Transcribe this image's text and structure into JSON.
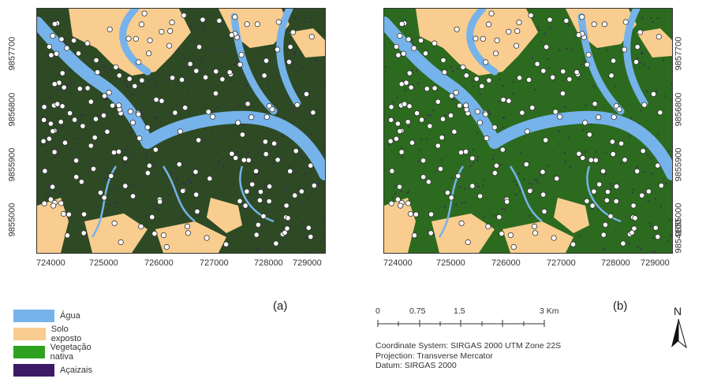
{
  "panels": [
    {
      "id": "a",
      "label": "(a)"
    },
    {
      "id": "b",
      "label": "(b)"
    }
  ],
  "x_ticks": [
    "724000",
    "725000",
    "726000",
    "727000",
    "728000",
    "729000"
  ],
  "y_ticks_left": [
    "9857700",
    "9856800",
    "9855900",
    "9855000"
  ],
  "y_ticks_right": [
    "9857700",
    "9856800",
    "9855900",
    "9855000",
    "9854100"
  ],
  "legend": [
    {
      "label": "Água",
      "color": "#76b3ea"
    },
    {
      "label": "Solo exposto",
      "color": "#f8cd8f"
    },
    {
      "label": "Vegetação nativa",
      "color": "#2ea21f"
    },
    {
      "label": "Açaizais",
      "color": "#3d1a66"
    }
  ],
  "scalebar": {
    "labels": [
      "0",
      "0.75",
      "1.5",
      "3 Km"
    ]
  },
  "metadata": {
    "coordinate_system": "Coordinate System: SIRGAS 2000 UTM Zone 22S",
    "projection": "Projection: Transverse Mercator",
    "datum": "Datum: SIRGAS 2000"
  },
  "north_label": "N",
  "colors": {
    "forest_dark_a": "#2e4a25",
    "forest_dark_b": "#2c6a1f",
    "water": "#76b3ea",
    "soil": "#f8cd8f",
    "point_fill": "#ffffff",
    "point_stroke": "#333333"
  }
}
